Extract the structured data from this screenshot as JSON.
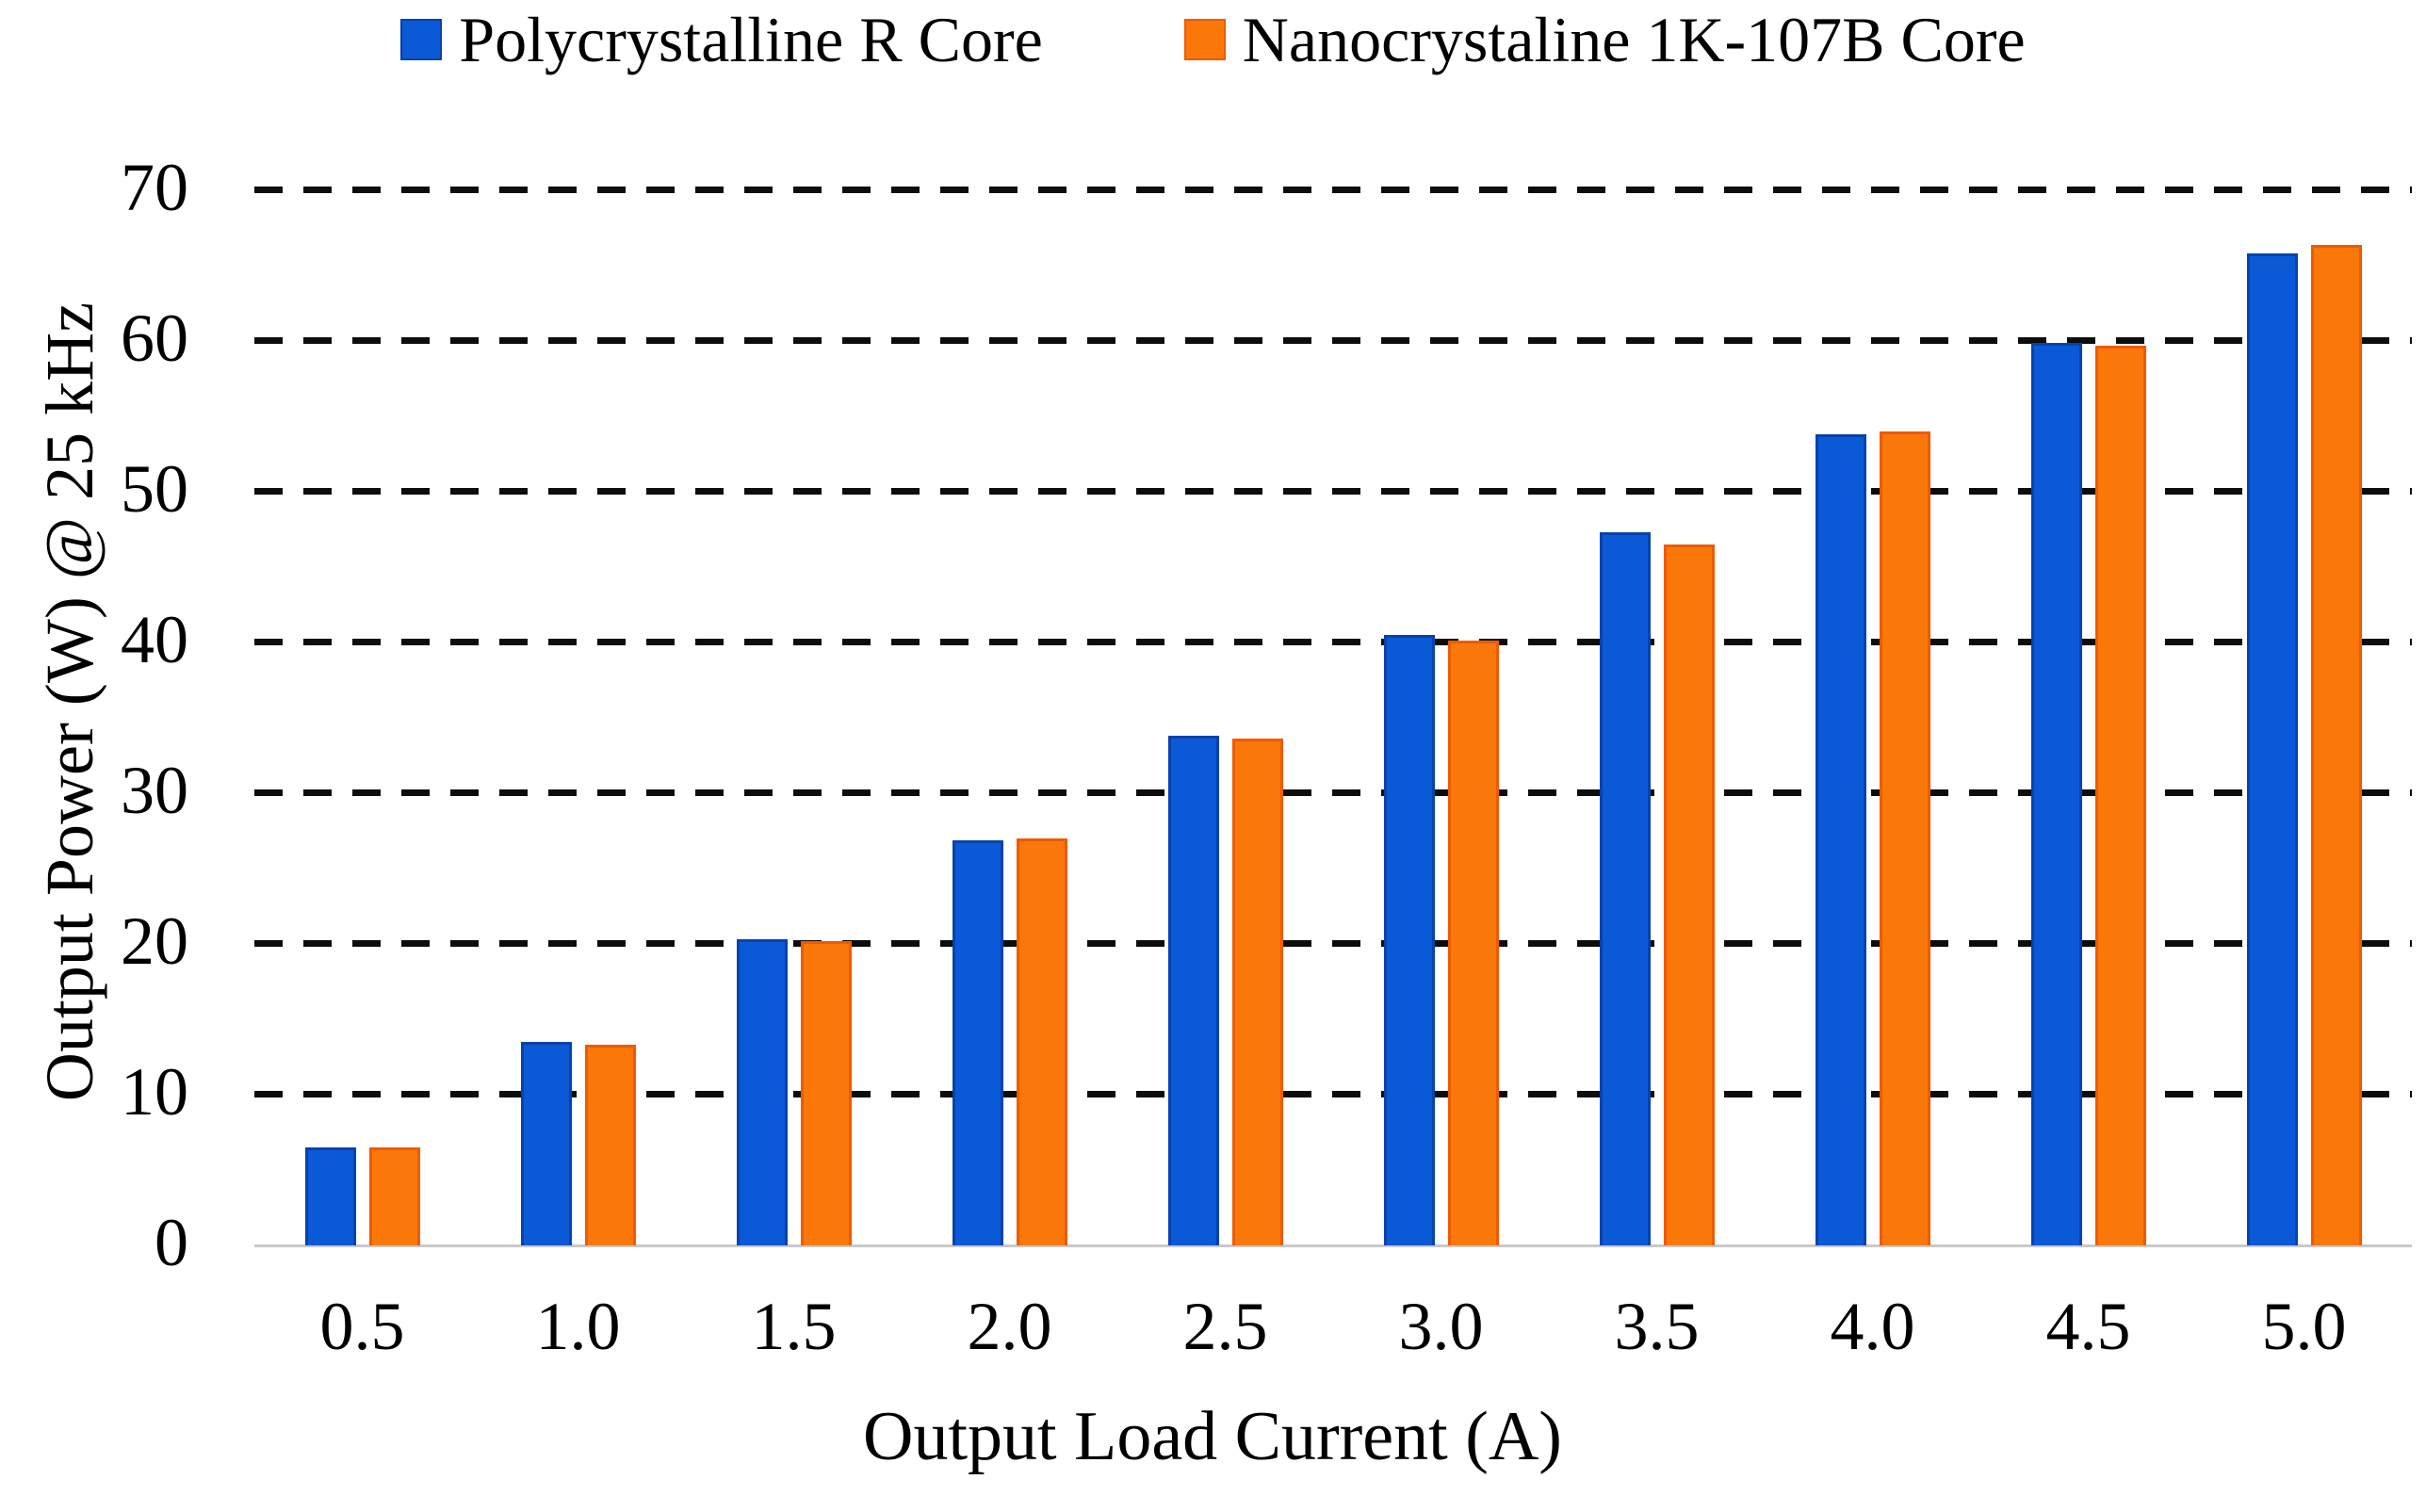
{
  "chart_data": {
    "type": "bar",
    "title": "",
    "xlabel": "Output Load Current (A)",
    "ylabel": "Output Power (W) @ 25 kHz",
    "categories": [
      "0.5",
      "1.0",
      "1.5",
      "2.0",
      "2.5",
      "3.0",
      "3.5",
      "4.0",
      "4.5",
      "5.0"
    ],
    "series": [
      {
        "name": "Polycrystalline R Core",
        "color": "#0a5ad8",
        "border": "#0742ad",
        "values": [
          6.5,
          13.5,
          20.3,
          26.9,
          33.8,
          40.5,
          47.3,
          53.8,
          59.9,
          65.8
        ]
      },
      {
        "name": "Nanocrystaline 1K-107B Core",
        "color": "#fa780a",
        "border": "#ef5a00",
        "values": [
          6.5,
          13.3,
          20.2,
          27.0,
          33.6,
          40.1,
          46.5,
          54.0,
          59.7,
          66.4
        ]
      }
    ],
    "ylim": [
      0,
      70
    ],
    "yticks": [
      0,
      10,
      20,
      30,
      40,
      50,
      60,
      70
    ],
    "grid": "horizontal-dashed-black",
    "legend_position": "top-center",
    "background": "#ffffff"
  }
}
